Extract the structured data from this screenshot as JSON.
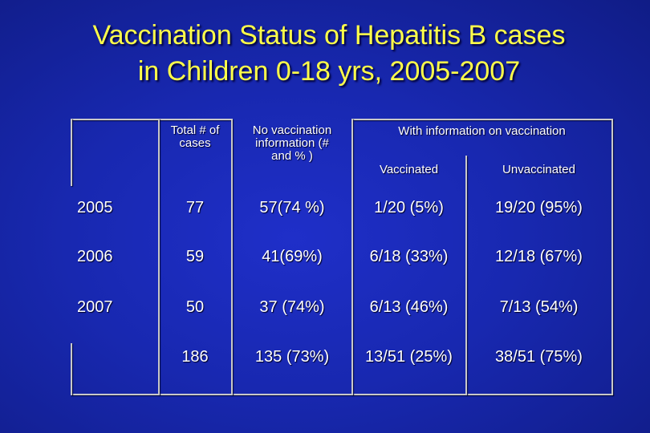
{
  "title": {
    "line1": "Vaccination Status of Hepatitis B cases",
    "line2": "in Children 0-18 yrs, 2005-2007"
  },
  "table": {
    "headers": {
      "total": [
        "Total # of",
        "cases"
      ],
      "no_info": [
        "No vaccination",
        "information (#",
        "and % )"
      ],
      "with_info": "With information on vaccination",
      "vaccinated": "Vaccinated",
      "unvaccinated": "Unvaccinated"
    },
    "rows": [
      {
        "year": "2005",
        "total": "77",
        "no_info": "57(74 %)",
        "vaccinated": "1/20 (5%)",
        "unvaccinated": "19/20 (95%)"
      },
      {
        "year": "2006",
        "total": "59",
        "no_info": "41(69%)",
        "vaccinated": "6/18 (33%)",
        "unvaccinated": "12/18 (67%)"
      },
      {
        "year": "2007",
        "total": "50",
        "no_info": "37 (74%)",
        "vaccinated": "6/13 (46%)",
        "unvaccinated": "7/13 (54%)"
      },
      {
        "year": "",
        "total": "186",
        "no_info": "135 (73%)",
        "vaccinated": "13/51 (25%)",
        "unvaccinated": "38/51 (75%)"
      }
    ]
  },
  "colors": {
    "background": "#1828b0",
    "title": "#ffff4a",
    "text": "#ffffff",
    "grid": "#c8c8c8"
  }
}
